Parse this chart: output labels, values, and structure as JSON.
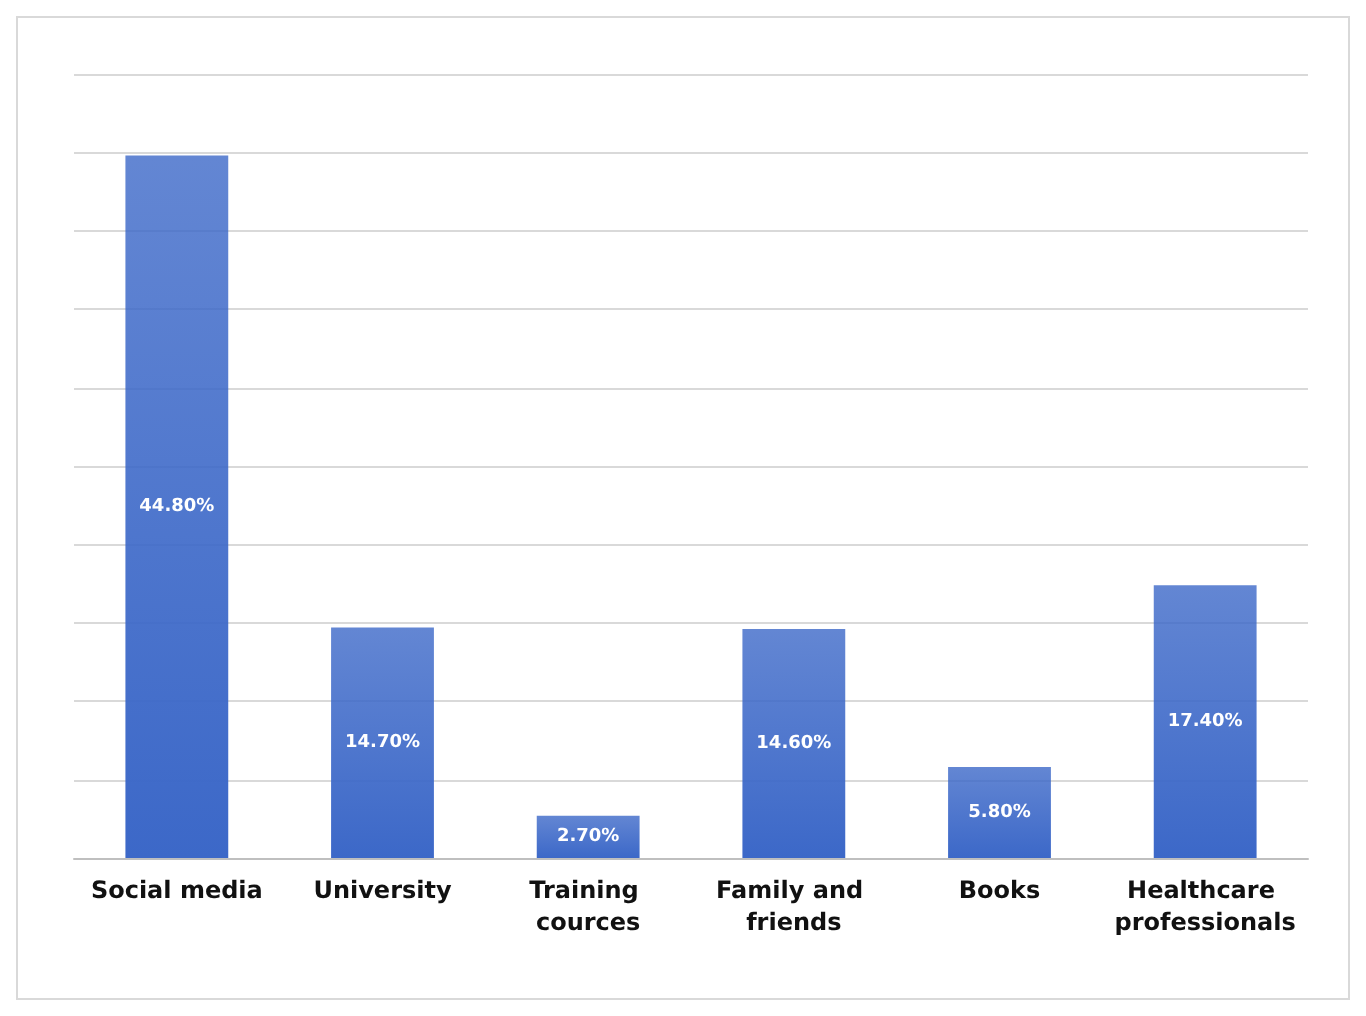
{
  "chart_data": {
    "type": "bar",
    "categories": [
      "Social media",
      "University",
      "Training cources",
      "Family and friends",
      "Books",
      "Healthcare professionals"
    ],
    "values": [
      44.8,
      14.7,
      2.7,
      14.6,
      5.8,
      17.4
    ],
    "value_labels": [
      "44.80%",
      "14.70%",
      "2.70%",
      "14.60%",
      "5.80%",
      "17.40%"
    ],
    "color": "#3c68c8",
    "ylim": [
      0,
      50
    ],
    "yticks": [
      {
        "value": 0,
        "label": null
      },
      {
        "value": 5,
        "label": null
      },
      {
        "value": 10,
        "label": null
      },
      {
        "value": 15,
        "label": null
      },
      {
        "value": 20,
        "label": null
      },
      {
        "value": 25,
        "label": null
      },
      {
        "value": 30,
        "label": null
      },
      {
        "value": 35,
        "label": null
      },
      {
        "value": 40,
        "label": null
      },
      {
        "value": 45,
        "label": null
      },
      {
        "value": 50,
        "label": null
      }
    ],
    "grid": "y",
    "tick_labels": "x"
  }
}
